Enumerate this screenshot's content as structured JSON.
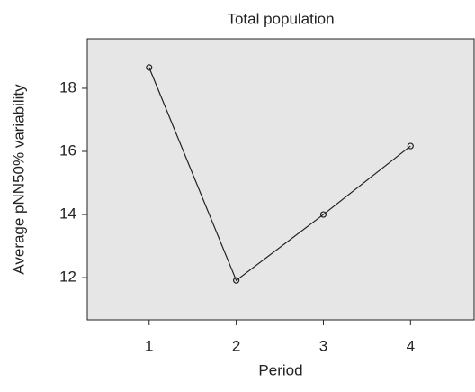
{
  "chart_data": {
    "type": "line",
    "title": "Total population",
    "x_label": "Period",
    "y_label": "Average pNN50% variability",
    "x": [
      1,
      2,
      3,
      4
    ],
    "series": [
      {
        "name": "Total population",
        "color": "#222222",
        "values": [
          18.66,
          11.91,
          14.0,
          16.17
        ]
      }
    ],
    "xlim": [
      0.29,
      4.73
    ],
    "ylim": [
      10.66,
      19.57
    ],
    "xticks": [
      1,
      2,
      3,
      4
    ],
    "yticks": [
      12,
      14,
      16,
      18
    ],
    "grid": false
  }
}
